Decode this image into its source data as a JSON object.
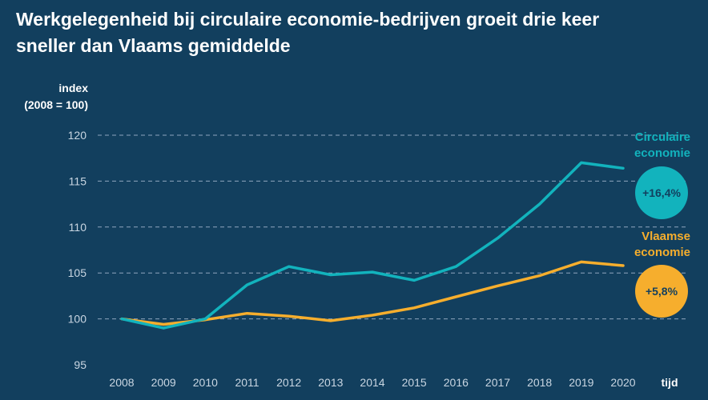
{
  "title_line1": "Werkgelegenheid bij circulaire economie-bedrijven groeit drie keer",
  "title_line2": "sneller dan Vlaams gemiddelde",
  "colors": {
    "background": "#123f5e",
    "circular": "#12b3bd",
    "flemish": "#f6ae2d"
  },
  "chart_data": {
    "type": "line",
    "title": "Werkgelegenheid bij circulaire economie-bedrijven groeit drie keer sneller dan Vlaams gemiddelde",
    "ylabel": [
      "index",
      "(2008 = 100)"
    ],
    "xlabel": "tijd",
    "ylim": [
      95,
      120
    ],
    "yticks": [
      95,
      100,
      105,
      110,
      115,
      120
    ],
    "grid": true,
    "x": [
      "2008",
      "2009",
      "2010",
      "2011",
      "2012",
      "2013",
      "2014",
      "2015",
      "2016",
      "2017",
      "2018",
      "2019",
      "2020"
    ],
    "series": [
      {
        "name": "Circulaire economie",
        "color": "#12b3bd",
        "values": [
          100,
          99,
          100,
          103.7,
          105.7,
          104.8,
          105.1,
          104.2,
          105.7,
          108.8,
          112.5,
          117,
          116.4
        ],
        "badge": "+16,4%",
        "label": [
          "Circulaire",
          "economie"
        ]
      },
      {
        "name": "Vlaamse economie",
        "color": "#f6ae2d",
        "values": [
          100,
          99.4,
          99.9,
          100.6,
          100.3,
          99.8,
          100.4,
          101.2,
          102.4,
          103.6,
          104.7,
          106.2,
          105.8
        ],
        "badge": "+5,8%",
        "label": [
          "Vlaamse",
          "economie"
        ]
      }
    ]
  }
}
